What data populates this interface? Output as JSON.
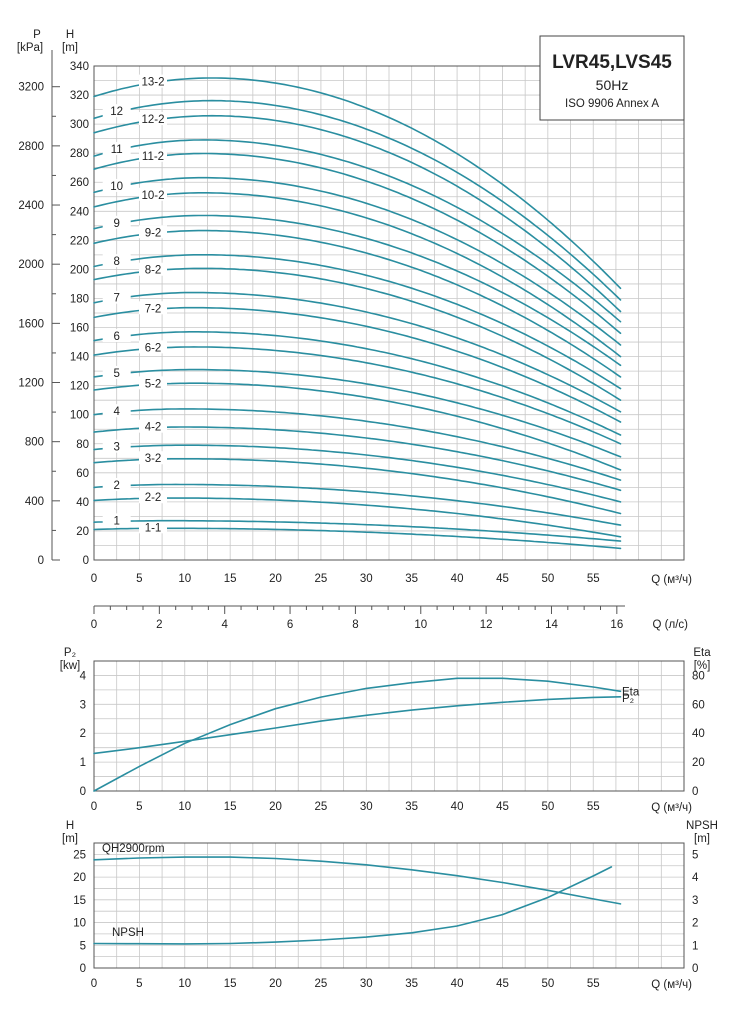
{
  "title_box": {
    "model": "LVR45,LVS45",
    "frequency": "50Hz",
    "standard": "ISO 9906 Annex A"
  },
  "colors": {
    "curve": "#2a8ea0",
    "grid": "#c8c8c8",
    "axis": "#555555"
  },
  "chart_data": [
    {
      "type": "line",
      "name": "head-curves",
      "xlabel": "Q (м³/ч)",
      "ylabel": "H [m]",
      "y2label": "P [kPa]",
      "xlim": [
        0,
        65
      ],
      "ylim": [
        0,
        340
      ],
      "y2lim": [
        0,
        3340
      ],
      "x_ticks": [
        0,
        5,
        10,
        15,
        20,
        25,
        30,
        35,
        40,
        45,
        50,
        55
      ],
      "y_ticks": [
        0,
        20,
        40,
        60,
        80,
        100,
        120,
        140,
        160,
        180,
        200,
        220,
        240,
        260,
        280,
        300,
        320,
        340
      ],
      "y2_ticks": [
        0,
        400,
        800,
        1200,
        1600,
        2000,
        2400,
        2800,
        3200
      ],
      "secondary_x": {
        "label": "Q (л/с)",
        "ticks": [
          0,
          2,
          4,
          6,
          8,
          10,
          12,
          14,
          16
        ],
        "factor": 3.6
      },
      "q_end": 58,
      "grid": true,
      "series": [
        {
          "name": "1-1",
          "shutoff": 21,
          "end": 8,
          "peak_q": 8,
          "label_q": 6.5
        },
        {
          "name": "1",
          "shutoff": 26,
          "end": 13,
          "peak_q": 8,
          "label_q": 2.5
        },
        {
          "name": "2-2",
          "shutoff": 41,
          "end": 16,
          "peak_q": 9,
          "label_q": 6.5
        },
        {
          "name": "2",
          "shutoff": 50,
          "end": 24,
          "peak_q": 9,
          "label_q": 2.5
        },
        {
          "name": "3-2",
          "shutoff": 67,
          "end": 32,
          "peak_q": 10,
          "label_q": 6.5
        },
        {
          "name": "3",
          "shutoff": 76,
          "end": 40,
          "peak_q": 10,
          "label_q": 2.5
        },
        {
          "name": "4-2",
          "shutoff": 88,
          "end": 48,
          "peak_q": 10,
          "label_q": 6.5
        },
        {
          "name": "4",
          "shutoff": 100,
          "end": 55,
          "peak_q": 10,
          "label_q": 2.5
        },
        {
          "name": "5-2",
          "shutoff": 117,
          "end": 62,
          "peak_q": 11,
          "label_q": 6.5
        },
        {
          "name": "5",
          "shutoff": 126,
          "end": 71,
          "peak_q": 11,
          "label_q": 2.5
        },
        {
          "name": "6-2",
          "shutoff": 141,
          "end": 80,
          "peak_q": 11,
          "label_q": 6.5
        },
        {
          "name": "6",
          "shutoff": 151,
          "end": 86,
          "peak_q": 11,
          "label_q": 2.5
        },
        {
          "name": "7-2",
          "shutoff": 167,
          "end": 95,
          "peak_q": 11,
          "label_q": 6.5
        },
        {
          "name": "7",
          "shutoff": 177,
          "end": 102,
          "peak_q": 11,
          "label_q": 2.5
        },
        {
          "name": "8-2",
          "shutoff": 193,
          "end": 110,
          "peak_q": 12,
          "label_q": 6.5
        },
        {
          "name": "8",
          "shutoff": 202,
          "end": 118,
          "peak_q": 12,
          "label_q": 2.5
        },
        {
          "name": "9-2",
          "shutoff": 218,
          "end": 126,
          "peak_q": 12,
          "label_q": 6.5
        },
        {
          "name": "9",
          "shutoff": 228,
          "end": 134,
          "peak_q": 12,
          "label_q": 2.5
        },
        {
          "name": "10-2",
          "shutoff": 243,
          "end": 140,
          "peak_q": 12,
          "label_q": 6.5
        },
        {
          "name": "10",
          "shutoff": 253,
          "end": 148,
          "peak_q": 12,
          "label_q": 2.5
        },
        {
          "name": "11-2",
          "shutoff": 269,
          "end": 156,
          "peak_q": 12,
          "label_q": 6.5
        },
        {
          "name": "11",
          "shutoff": 278,
          "end": 164,
          "peak_q": 12,
          "label_q": 2.5
        },
        {
          "name": "12-2",
          "shutoff": 294,
          "end": 171,
          "peak_q": 13,
          "label_q": 6.5
        },
        {
          "name": "12",
          "shutoff": 304,
          "end": 179,
          "peak_q": 13,
          "label_q": 2.5
        },
        {
          "name": "13-2",
          "shutoff": 319,
          "end": 187,
          "peak_q": 13,
          "label_q": 6.5
        }
      ]
    },
    {
      "type": "line",
      "name": "power-efficiency",
      "xlabel": "Q (м³/ч)",
      "ylabel": "P₂ [kw]",
      "y2label": "Eta [%]",
      "xlim": [
        0,
        65
      ],
      "ylim": [
        0,
        4.5
      ],
      "y2lim": [
        0,
        90
      ],
      "x_ticks": [
        0,
        5,
        10,
        15,
        20,
        25,
        30,
        35,
        40,
        45,
        50,
        55
      ],
      "y_ticks": [
        0,
        1,
        2,
        3,
        4
      ],
      "y2_ticks": [
        0,
        20,
        40,
        60,
        80
      ],
      "grid": true,
      "series": [
        {
          "name": "Eta",
          "axis": "right",
          "points": [
            [
              0,
              0
            ],
            [
              5,
              17
            ],
            [
              10,
              33
            ],
            [
              15,
              46
            ],
            [
              20,
              57
            ],
            [
              25,
              65
            ],
            [
              30,
              71
            ],
            [
              35,
              75
            ],
            [
              40,
              78
            ],
            [
              45,
              78
            ],
            [
              50,
              76
            ],
            [
              55,
              72
            ],
            [
              58,
              69
            ]
          ]
        },
        {
          "name": "P2",
          "axis": "left",
          "points": [
            [
              0,
              1.3
            ],
            [
              5,
              1.5
            ],
            [
              10,
              1.72
            ],
            [
              15,
              1.95
            ],
            [
              20,
              2.18
            ],
            [
              25,
              2.42
            ],
            [
              30,
              2.62
            ],
            [
              35,
              2.8
            ],
            [
              40,
              2.95
            ],
            [
              45,
              3.07
            ],
            [
              50,
              3.17
            ],
            [
              55,
              3.24
            ],
            [
              58,
              3.26
            ]
          ]
        }
      ]
    },
    {
      "type": "line",
      "name": "qh-npsh",
      "xlabel": "Q (м³/ч)",
      "ylabel": "H [m]",
      "y2label": "NPSH [m]",
      "xlim": [
        0,
        65
      ],
      "ylim": [
        0,
        27.5
      ],
      "y2lim": [
        0,
        5.5
      ],
      "x_ticks": [
        0,
        5,
        10,
        15,
        20,
        25,
        30,
        35,
        40,
        45,
        50,
        55
      ],
      "y_ticks": [
        0,
        5,
        10,
        15,
        20,
        25
      ],
      "y2_ticks": [
        0,
        1,
        2,
        3,
        4,
        5
      ],
      "grid": true,
      "series": [
        {
          "name": "QH2900rpm",
          "axis": "left",
          "points": [
            [
              0,
              23.8
            ],
            [
              5,
              24.2
            ],
            [
              10,
              24.4
            ],
            [
              15,
              24.4
            ],
            [
              20,
              24.1
            ],
            [
              25,
              23.5
            ],
            [
              30,
              22.7
            ],
            [
              35,
              21.6
            ],
            [
              40,
              20.3
            ],
            [
              45,
              18.8
            ],
            [
              50,
              17.1
            ],
            [
              55,
              15.2
            ],
            [
              58,
              14.1
            ]
          ]
        },
        {
          "name": "NPSH",
          "axis": "right",
          "points": [
            [
              0,
              1.08
            ],
            [
              5,
              1.07
            ],
            [
              10,
              1.06
            ],
            [
              15,
              1.08
            ],
            [
              20,
              1.14
            ],
            [
              25,
              1.23
            ],
            [
              30,
              1.36
            ],
            [
              35,
              1.55
            ],
            [
              40,
              1.85
            ],
            [
              45,
              2.35
            ],
            [
              50,
              3.1
            ],
            [
              55,
              4.05
            ],
            [
              57,
              4.45
            ]
          ]
        }
      ]
    }
  ],
  "labels": {
    "p_top": "P",
    "p_unit": "[kPa]",
    "h_top": "H",
    "h_unit": "[m]",
    "q_m3h": "Q (м³/ч)",
    "q_ls": "Q (л/с)",
    "p2_top": "P₂",
    "p2_unit": "[kw]",
    "eta_top": "Eta",
    "eta_unit": "[%]",
    "eta_curve": "Eta",
    "p2_curve": "P₂",
    "h3_top": "H",
    "h3_unit": "[m]",
    "npsh_top": "NPSH",
    "npsh_unit": "[m]",
    "qh_curve": "QH2900rpm",
    "npsh_curve": "NPSH"
  }
}
